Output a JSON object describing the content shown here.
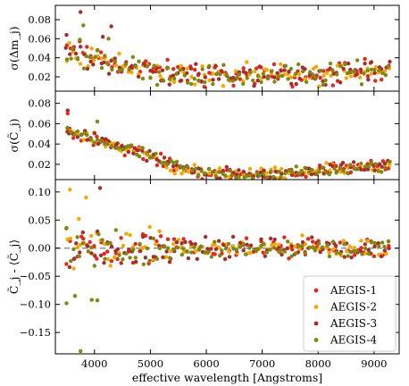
{
  "chart_data": {
    "type": "scatter",
    "xlabel": "effective wavelength [Angstroms]",
    "xlim": [
      3300,
      9450
    ],
    "xticks": [
      4000,
      5000,
      6000,
      7000,
      8000,
      9000
    ],
    "legend": {
      "placement": "bottom-right",
      "entries": [
        "AEGIS-1",
        "AEGIS-2",
        "AEGIS-3",
        "AEGIS-4"
      ]
    },
    "series_colors": [
      "#e8261c",
      "#f5a800",
      "#a82c2c",
      "#7c8a12"
    ],
    "panels": [
      {
        "name": "sigma-delta-m",
        "ylabel": "σ(Δm_j)",
        "ylim": [
          0.005,
          0.095
        ],
        "yticks": [
          0.02,
          0.04,
          0.06,
          0.08
        ],
        "ytick_labels": [
          "0.02",
          "0.04",
          "0.06",
          "0.08"
        ],
        "reference_line": null,
        "shape": {
          "type": "noisy",
          "knots": [
            [
              3500,
              0.048
            ],
            [
              4000,
              0.042
            ],
            [
              4500,
              0.032
            ],
            [
              5000,
              0.026
            ],
            [
              6000,
              0.021
            ],
            [
              7000,
              0.021
            ],
            [
              8000,
              0.022
            ],
            [
              8800,
              0.026
            ],
            [
              9300,
              0.03
            ]
          ],
          "noise": 0.012
        },
        "outliers": [
          [
            3750,
            0.088,
            2
          ],
          [
            4300,
            0.073,
            2
          ],
          [
            3800,
            0.074,
            3
          ],
          [
            4150,
            0.062,
            2
          ],
          [
            4250,
            0.06,
            3
          ],
          [
            3500,
            0.064,
            2
          ]
        ]
      },
      {
        "name": "sigma-C",
        "ylabel": "σ(C̃_j)",
        "ylim": [
          0.005,
          0.092
        ],
        "yticks": [
          0.02,
          0.04,
          0.06,
          0.08
        ],
        "ytick_labels": [
          "0.02",
          "0.04",
          "0.06",
          "0.08"
        ],
        "reference_line": null,
        "shape": {
          "type": "noisy",
          "knots": [
            [
              3500,
              0.055
            ],
            [
              4000,
              0.045
            ],
            [
              4500,
              0.036
            ],
            [
              5000,
              0.028
            ],
            [
              5500,
              0.016
            ],
            [
              6000,
              0.011
            ],
            [
              7000,
              0.01
            ],
            [
              8000,
              0.013
            ],
            [
              9000,
              0.017
            ],
            [
              9300,
              0.019
            ]
          ],
          "noise": 0.006
        },
        "outliers": [
          [
            3520,
            0.073,
            2
          ],
          [
            3520,
            0.07,
            0
          ],
          [
            4050,
            0.062,
            3
          ]
        ]
      },
      {
        "name": "C-minus-mean",
        "ylabel": "C̃_j - ⟨C̃_j⟩",
        "ylim": [
          -0.188,
          0.122
        ],
        "yticks": [
          0.1,
          0.05,
          0.0,
          -0.05,
          -0.1,
          -0.15
        ],
        "ytick_labels": [
          "0.10",
          "0.05",
          "0.00",
          "−0.05",
          "−0.10",
          "−0.15"
        ],
        "reference_line": 0.0,
        "shape": {
          "type": "noisy",
          "knots": [
            [
              3500,
              0.0
            ],
            [
              5000,
              0.0
            ],
            [
              7000,
              0.0
            ],
            [
              9300,
              0.0
            ]
          ],
          "noise": 0.045,
          "noise_decay_to": 0.018
        },
        "outliers": [
          [
            3750,
            -0.183,
            3
          ],
          [
            3560,
            0.104,
            1
          ],
          [
            3850,
            0.09,
            1
          ],
          [
            4100,
            0.107,
            2
          ],
          [
            3650,
            -0.085,
            3
          ],
          [
            3500,
            -0.098,
            3
          ],
          [
            3950,
            -0.092,
            3
          ],
          [
            4050,
            -0.093,
            3
          ],
          [
            3720,
            0.052,
            1
          ]
        ]
      }
    ]
  }
}
